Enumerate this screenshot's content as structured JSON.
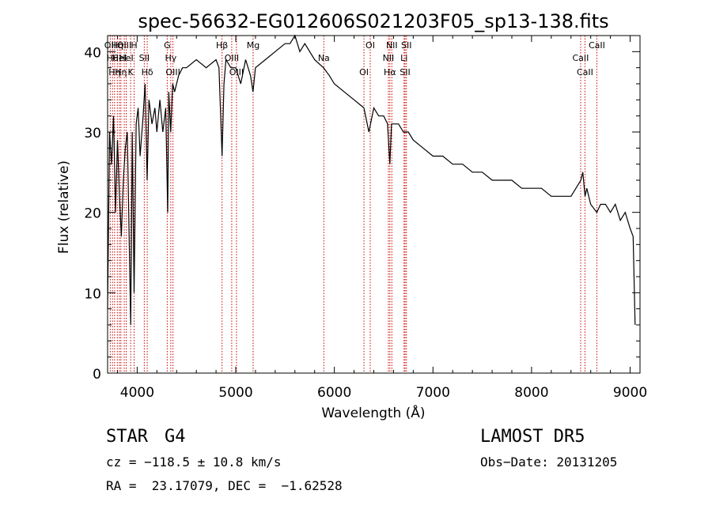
{
  "chart_data": {
    "type": "line",
    "title": "spec-56632-EG012606S021203F05_sp13-138.fits",
    "xlabel": "Wavelength (Å)",
    "ylabel": "Flux (relative)",
    "xlim": [
      3700,
      9100
    ],
    "ylim": [
      0,
      42
    ],
    "x_ticks": [
      4000,
      5000,
      6000,
      7000,
      8000,
      9000
    ],
    "y_ticks": [
      0,
      10,
      20,
      30,
      40
    ],
    "grid": false,
    "line_color": "#000000",
    "marker_color": "#cc0000",
    "series": [
      {
        "x": [
          3700,
          3720,
          3740,
          3760,
          3780,
          3800,
          3820,
          3840,
          3860,
          3880,
          3900,
          3920,
          3934,
          3950,
          3969,
          3990,
          4010,
          4030,
          4060,
          4080,
          4101,
          4120,
          4150,
          4180,
          4200,
          4230,
          4260,
          4290,
          4310,
          4320,
          4340,
          4360,
          4380,
          4420,
          4460,
          4500,
          4600,
          4700,
          4800,
          4830,
          4861,
          4880,
          4900,
          4950,
          5000,
          5050,
          5100,
          5150,
          5175,
          5200,
          5300,
          5400,
          5500,
          5550,
          5600,
          5650,
          5700,
          5800,
          5890,
          5950,
          6000,
          6100,
          6200,
          6300,
          6350,
          6400,
          6450,
          6500,
          6540,
          6563,
          6580,
          6600,
          6650,
          6700,
          6750,
          6800,
          6900,
          7000,
          7100,
          7200,
          7300,
          7400,
          7500,
          7600,
          7700,
          7800,
          7900,
          8000,
          8100,
          8200,
          8300,
          8400,
          8450,
          8500,
          8520,
          8542,
          8560,
          8600,
          8662,
          8700,
          8750,
          8800,
          8850,
          8900,
          8950,
          9000,
          9030,
          9050
        ],
        "values": [
          8,
          30,
          26,
          32,
          20,
          29,
          22,
          17,
          24,
          28,
          30,
          16,
          6,
          30,
          10,
          31,
          33,
          27,
          32,
          36,
          24,
          34,
          31,
          33,
          30,
          34,
          30,
          33,
          20,
          35,
          30,
          36,
          35,
          37,
          38,
          38,
          39,
          38,
          39,
          38,
          27,
          36,
          39,
          38,
          38,
          36,
          39,
          37,
          35,
          38,
          39,
          40,
          41,
          41,
          42,
          40,
          41,
          39,
          38,
          37,
          36,
          35,
          34,
          33,
          30,
          33,
          32,
          32,
          31,
          26,
          31,
          31,
          31,
          30,
          30,
          29,
          28,
          27,
          27,
          26,
          26,
          25,
          25,
          24,
          24,
          24,
          23,
          23,
          23,
          22,
          22,
          22,
          23,
          24,
          25,
          22,
          23,
          21,
          20,
          21,
          21,
          20,
          21,
          19,
          20,
          18,
          17,
          6
        ]
      }
    ],
    "line_markers": [
      {
        "x": 3727,
        "label": "OII"
      },
      {
        "x": 3750,
        "label": "Hθ"
      },
      {
        "x": 3771,
        "label": "Hη"
      },
      {
        "x": 3799,
        "label": "Hη"
      },
      {
        "x": 3820,
        "label": "HeI"
      },
      {
        "x": 3835,
        "label": "Hη"
      },
      {
        "x": 3869,
        "label": "OIII"
      },
      {
        "x": 3889,
        "label": "HeI"
      },
      {
        "x": 3934,
        "label": "K"
      },
      {
        "x": 3969,
        "label": "H"
      },
      {
        "x": 4072,
        "label": "SII"
      },
      {
        "x": 4102,
        "label": "Hδ"
      },
      {
        "x": 4305,
        "label": "G"
      },
      {
        "x": 4341,
        "label": "Hγ"
      },
      {
        "x": 4363,
        "label": "OIII"
      },
      {
        "x": 4861,
        "label": "Hβ"
      },
      {
        "x": 4959,
        "label": "OIII"
      },
      {
        "x": 5007,
        "label": "OIII"
      },
      {
        "x": 5176,
        "label": "Mg"
      },
      {
        "x": 5893,
        "label": "Na"
      },
      {
        "x": 6300,
        "label": "OI"
      },
      {
        "x": 6364,
        "label": "OI"
      },
      {
        "x": 6548,
        "label": "NII"
      },
      {
        "x": 6563,
        "label": "Hα"
      },
      {
        "x": 6583,
        "label": "NII"
      },
      {
        "x": 6707,
        "label": "Li"
      },
      {
        "x": 6717,
        "label": "SII"
      },
      {
        "x": 6731,
        "label": "SII"
      },
      {
        "x": 8498,
        "label": "CaII"
      },
      {
        "x": 8542,
        "label": "CaII"
      },
      {
        "x": 8662,
        "label": "CaII"
      }
    ]
  },
  "info": {
    "object_class": "STAR",
    "subclass": "G4",
    "survey": "LAMOST DR5",
    "cz": "cz = −118.5 ± 10.8 km/s",
    "obs_date": "Obs−Date: 20131205",
    "coords": "RA =  23.17079, DEC =  −1.62528"
  }
}
